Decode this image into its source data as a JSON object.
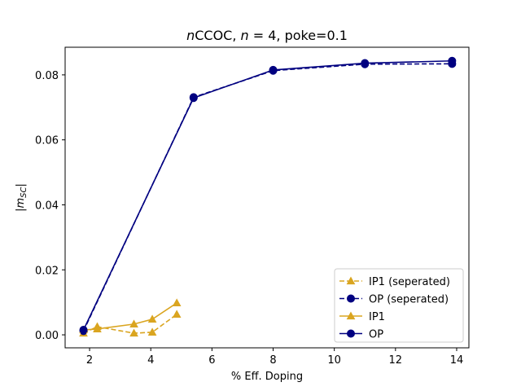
{
  "chart_data": {
    "type": "line",
    "title": "nCCOC, n = 4, poke=0.1",
    "xlabel": "% Eff. Doping",
    "ylabel": "|m_SC|",
    "xlim": [
      1.2,
      14.4
    ],
    "ylim": [
      -0.004,
      0.0885
    ],
    "xticks": [
      2,
      4,
      6,
      8,
      10,
      12,
      14
    ],
    "xtick_labels": [
      "2",
      "4",
      "6",
      "8",
      "10",
      "12",
      "14"
    ],
    "yticks": [
      0.0,
      0.02,
      0.04,
      0.06,
      0.08
    ],
    "ytick_labels": [
      "0.00",
      "0.02",
      "0.04",
      "0.06",
      "0.08"
    ],
    "grid": false,
    "legend_position": "bottom-right",
    "series": [
      {
        "name": "IP1 (seperated)",
        "color": "#DAA520",
        "linestyle": "dashed",
        "marker": "triangle",
        "x": [
          1.8,
          2.25,
          3.45,
          4.05,
          4.85
        ],
        "y": [
          0.0005,
          0.0025,
          0.0005,
          0.0008,
          0.0063
        ]
      },
      {
        "name": "OP (seperated)",
        "color": "#000080",
        "linestyle": "dashed",
        "marker": "circle",
        "x": [
          1.8,
          5.4,
          8.0,
          11.0,
          13.85
        ],
        "y": [
          0.0012,
          0.0731,
          0.0813,
          0.0833,
          0.0834
        ]
      },
      {
        "name": "IP1",
        "color": "#DAA520",
        "linestyle": "solid",
        "marker": "triangle",
        "x": [
          1.8,
          2.25,
          3.45,
          4.05,
          4.85
        ],
        "y": [
          0.0015,
          0.0018,
          0.0033,
          0.0048,
          0.0098
        ]
      },
      {
        "name": "OP",
        "color": "#000080",
        "linestyle": "solid",
        "marker": "circle",
        "x": [
          1.8,
          5.4,
          8.0,
          11.0,
          13.85
        ],
        "y": [
          0.0015,
          0.0729,
          0.0815,
          0.0836,
          0.0843
        ]
      }
    ]
  }
}
